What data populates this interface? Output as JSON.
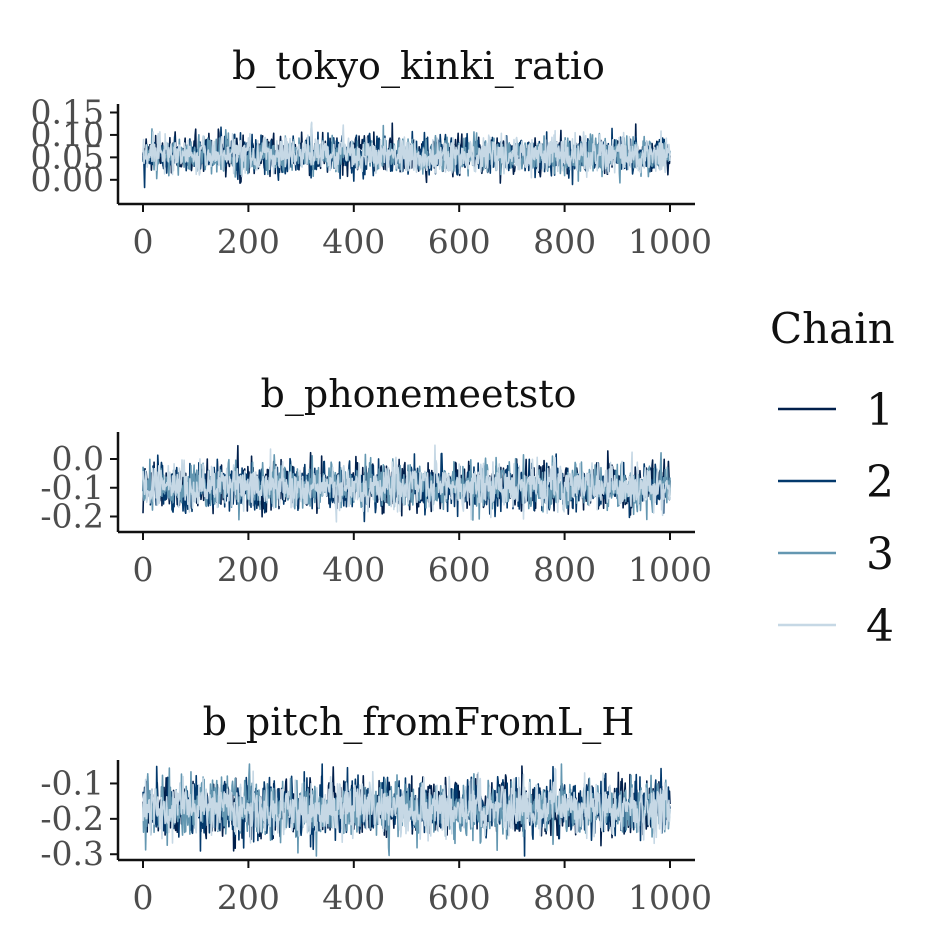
{
  "chart_data": [
    {
      "type": "line",
      "title": "b_tokyo_kinki_ratio",
      "x_ticks": [
        "0",
        "200",
        "400",
        "600",
        "800",
        "1000"
      ],
      "y_ticks": [
        "0.00",
        "0.05",
        "0.10",
        "0.15"
      ],
      "xlim": [
        0,
        1000
      ],
      "ylim": [
        -0.045,
        0.16
      ],
      "n_draws": 1000,
      "center": 0.055,
      "spread": 0.023,
      "series": [
        {
          "name": "1",
          "color": "#011f4b"
        },
        {
          "name": "2",
          "color": "#03396c"
        },
        {
          "name": "3",
          "color": "#6497b1"
        },
        {
          "name": "4",
          "color": "#c6d8e5"
        }
      ]
    },
    {
      "type": "line",
      "title": "b_phonemeetsto",
      "x_ticks": [
        "0",
        "200",
        "400",
        "600",
        "800",
        "1000"
      ],
      "y_ticks": [
        "-0.2",
        "-0.1",
        "0.0"
      ],
      "xlim": [
        0,
        1000
      ],
      "ylim": [
        -0.24,
        0.08
      ],
      "n_draws": 1000,
      "center": -0.095,
      "spread": 0.045,
      "series": [
        {
          "name": "1",
          "color": "#011f4b"
        },
        {
          "name": "2",
          "color": "#03396c"
        },
        {
          "name": "3",
          "color": "#6497b1"
        },
        {
          "name": "4",
          "color": "#c6d8e5"
        }
      ]
    },
    {
      "type": "line",
      "title": "b_pitch_fromFromL_H",
      "x_ticks": [
        "0",
        "200",
        "400",
        "600",
        "800",
        "1000"
      ],
      "y_ticks": [
        "-0.3",
        "-0.2",
        "-0.1"
      ],
      "xlim": [
        0,
        1000
      ],
      "ylim": [
        -0.305,
        -0.045
      ],
      "n_draws": 1000,
      "center": -0.17,
      "spread": 0.045,
      "series": [
        {
          "name": "1",
          "color": "#011f4b"
        },
        {
          "name": "2",
          "color": "#03396c"
        },
        {
          "name": "3",
          "color": "#6497b1"
        },
        {
          "name": "4",
          "color": "#c6d8e5"
        }
      ]
    }
  ],
  "legend": {
    "title": "Chain",
    "position": "right",
    "items": [
      {
        "label": "1",
        "color": "#011f4b"
      },
      {
        "label": "2",
        "color": "#03396c"
      },
      {
        "label": "3",
        "color": "#6497b1"
      },
      {
        "label": "4",
        "color": "#c6d8e5"
      }
    ]
  }
}
